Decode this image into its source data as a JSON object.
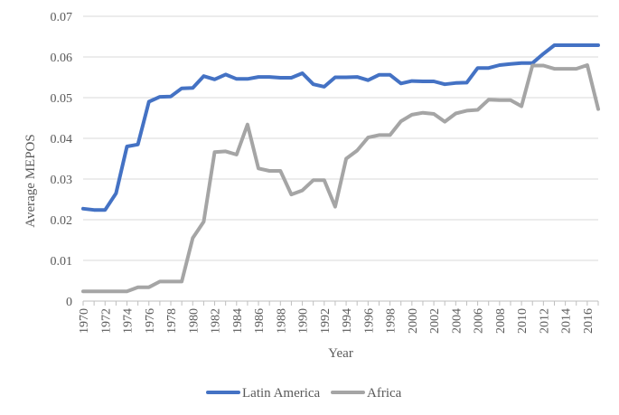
{
  "chart_data": {
    "type": "line",
    "title": "",
    "xlabel": "Year",
    "ylabel": "Average MEPOS",
    "ylim": [
      0,
      0.07
    ],
    "y_ticks": [
      "0",
      "0.01",
      "0.02",
      "0.03",
      "0.04",
      "0.05",
      "0.06",
      "0.07"
    ],
    "y_tick_values": [
      0,
      0.01,
      0.02,
      0.03,
      0.04,
      0.05,
      0.06,
      0.07
    ],
    "x_tick_labels": [
      "1970",
      "1972",
      "1974",
      "1976",
      "1978",
      "1980",
      "1982",
      "1984",
      "1986",
      "1988",
      "1990",
      "1992",
      "1994",
      "1996",
      "1998",
      "2000",
      "2002",
      "2004",
      "2006",
      "2008",
      "2010",
      "2012",
      "2014",
      "2016"
    ],
    "x": [
      1970,
      1971,
      1972,
      1973,
      1974,
      1975,
      1976,
      1977,
      1978,
      1979,
      1980,
      1981,
      1982,
      1983,
      1984,
      1985,
      1986,
      1987,
      1988,
      1989,
      1990,
      1991,
      1992,
      1993,
      1994,
      1995,
      1996,
      1997,
      1998,
      1999,
      2000,
      2001,
      2002,
      2003,
      2004,
      2005,
      2006,
      2007,
      2008,
      2009,
      2010,
      2011,
      2012,
      2013,
      2014,
      2015,
      2016,
      2017
    ],
    "grid": true,
    "legend_position": "bottom",
    "series": [
      {
        "name": "Latin America",
        "color": "#4472C4",
        "values": [
          0.0227,
          0.0224,
          0.0224,
          0.0265,
          0.038,
          0.0385,
          0.049,
          0.0502,
          0.0503,
          0.0523,
          0.0524,
          0.0553,
          0.0545,
          0.0557,
          0.0546,
          0.0546,
          0.0551,
          0.0551,
          0.0549,
          0.0549,
          0.056,
          0.0533,
          0.0527,
          0.055,
          0.055,
          0.0551,
          0.0543,
          0.0556,
          0.0556,
          0.0535,
          0.0541,
          0.054,
          0.054,
          0.0533,
          0.0536,
          0.0537,
          0.0573,
          0.0573,
          0.058,
          0.0583,
          0.0585,
          0.0585,
          0.0608,
          0.0629,
          0.0629,
          0.0629,
          0.0629,
          0.0629
        ]
      },
      {
        "name": "Africa",
        "color": "#A5A5A5",
        "values": [
          0.0024,
          0.0024,
          0.0024,
          0.0024,
          0.0024,
          0.0034,
          0.0034,
          0.0048,
          0.0048,
          0.0048,
          0.0155,
          0.0195,
          0.0366,
          0.0368,
          0.036,
          0.0434,
          0.0326,
          0.032,
          0.032,
          0.0262,
          0.0272,
          0.0297,
          0.0297,
          0.0232,
          0.035,
          0.037,
          0.0402,
          0.0408,
          0.0408,
          0.0442,
          0.0458,
          0.0463,
          0.046,
          0.0441,
          0.0461,
          0.0468,
          0.047,
          0.0495,
          0.0494,
          0.0494,
          0.0479,
          0.0579,
          0.0579,
          0.0571,
          0.0571,
          0.0571,
          0.058,
          0.0472
        ]
      }
    ]
  }
}
